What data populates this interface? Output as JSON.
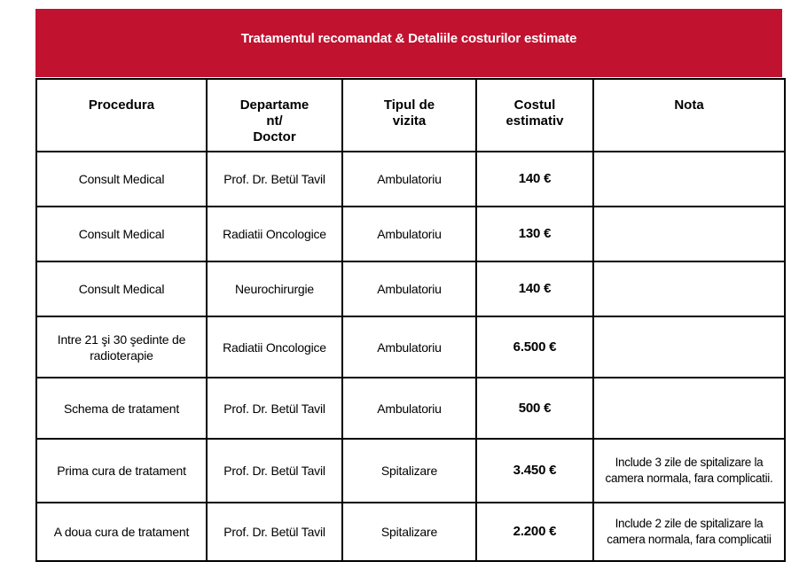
{
  "banner": {
    "title": "Tratamentul recomandat & Detaliile costurilor estimate",
    "background_color": "#C11230",
    "text_color": "#FFFFFF"
  },
  "table": {
    "border_color": "#000000",
    "columns": [
      {
        "label": "Procedura"
      },
      {
        "label": "Departame\nnt/\nDoctor"
      },
      {
        "label": "Tipul de\nvizita"
      },
      {
        "label": "Costul\nestimativ"
      },
      {
        "label": "Nota"
      }
    ],
    "rows": [
      {
        "procedura": "Consult Medical",
        "departament": "Prof. Dr. Betül Tavil",
        "tipul": "Ambulatoriu",
        "cost": "140 €",
        "nota": ""
      },
      {
        "procedura": "Consult Medical",
        "departament": "Radiatii Oncologice",
        "tipul": "Ambulatoriu",
        "cost": "130 €",
        "nota": ""
      },
      {
        "procedura": "Consult Medical",
        "departament": "Neurochirurgie",
        "tipul": "Ambulatoriu",
        "cost": "140 €",
        "nota": ""
      },
      {
        "procedura": "Intre 21 şi 30 şedinte de radioterapie",
        "departament": "Radiatii Oncologice",
        "tipul": "Ambulatoriu",
        "cost": "6.500 €",
        "nota": ""
      },
      {
        "procedura": "Schema de tratament",
        "departament": "Prof. Dr. Betül Tavil",
        "tipul": "Ambulatoriu",
        "cost": "500 €",
        "nota": ""
      },
      {
        "procedura": "Prima cura de tratament",
        "departament": "Prof. Dr. Betül Tavil",
        "tipul": "Spitalizare",
        "cost": "3.450 €",
        "nota": "Include 3 zile de spitalizare la camera normala, fara complicatii."
      },
      {
        "procedura": "A doua cura de tratament",
        "departament": "Prof. Dr. Betül Tavil",
        "tipul": "Spitalizare",
        "cost": "2.200 €",
        "nota": "Include 2 zile de spitalizare la camera normala, fara complicatii"
      }
    ]
  }
}
